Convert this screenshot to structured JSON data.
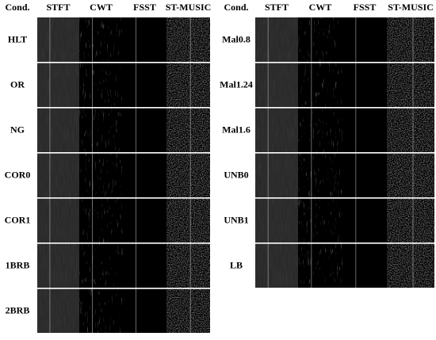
{
  "left": {
    "header": [
      "Cond.",
      "STFT",
      "CWT",
      "FSST",
      "ST-MUSIC"
    ],
    "rows": [
      "HLT",
      "OR",
      "NG",
      "COR0",
      "COR1",
      "1BRB",
      "2BRB"
    ]
  },
  "right": {
    "header": [
      "Cond.",
      "STFT",
      "CWT",
      "FSST",
      "ST-MUSIC"
    ],
    "rows": [
      "Mal0.8",
      "Mal1.24",
      "Mal1.6",
      "UNB0",
      "UNB1",
      "LB"
    ]
  }
}
